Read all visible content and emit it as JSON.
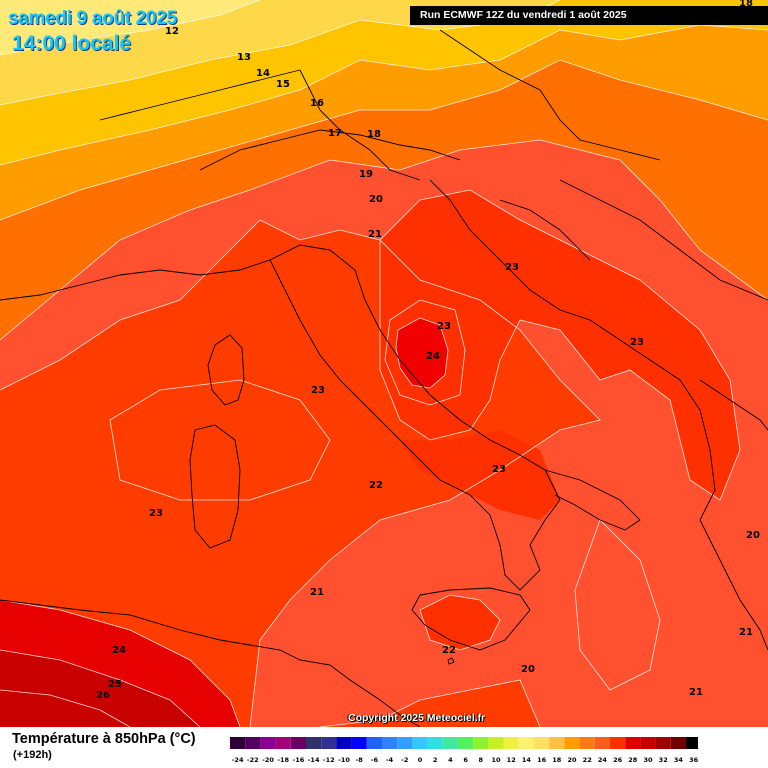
{
  "header": {
    "date_title": "samedi 9 août 2025",
    "time_title": "14:00 localé",
    "run_info": "Run ECMWF 12Z du vendredi 1 août 2025"
  },
  "footer": {
    "parameter_title": "Température à 850hPa (°C)",
    "lead_time": "(+192h)",
    "copyright": "Copyright 2025 Meteociel.fr"
  },
  "map_labels": [
    "18",
    "12",
    "13",
    "14",
    "15",
    "16",
    "17",
    "18",
    "19",
    "20",
    "21",
    "23",
    "23",
    "23",
    "24",
    "23",
    "23",
    "22",
    "23",
    "21",
    "22",
    "20",
    "20",
    "21",
    "21",
    "24",
    "25",
    "26"
  ],
  "legend": {
    "ticks": [
      "-24",
      "-22",
      "-20",
      "-18",
      "-16",
      "-14",
      "-12",
      "-10",
      "-8",
      "-6",
      "-4",
      "-2",
      "0",
      "2",
      "4",
      "6",
      "8",
      "10",
      "12",
      "14",
      "16",
      "18",
      "20",
      "22",
      "24",
      "26",
      "28",
      "30",
      "32",
      "34",
      "36"
    ],
    "colors": [
      "#2e0037",
      "#520060",
      "#8a0090",
      "#a4007a",
      "#6a0060",
      "#30306b",
      "#303090",
      "#0000c0",
      "#0000ff",
      "#2060ff",
      "#3080ff",
      "#30a0ff",
      "#30c8ff",
      "#30e0e0",
      "#40e8a0",
      "#50f060",
      "#90f030",
      "#c8f020",
      "#f0f040",
      "#fff070",
      "#ffe060",
      "#ffc040",
      "#ff9c00",
      "#ff7a10",
      "#ff5a20",
      "#ff3000",
      "#e00000",
      "#c80000",
      "#a00000",
      "#700000",
      "#000000"
    ]
  }
}
